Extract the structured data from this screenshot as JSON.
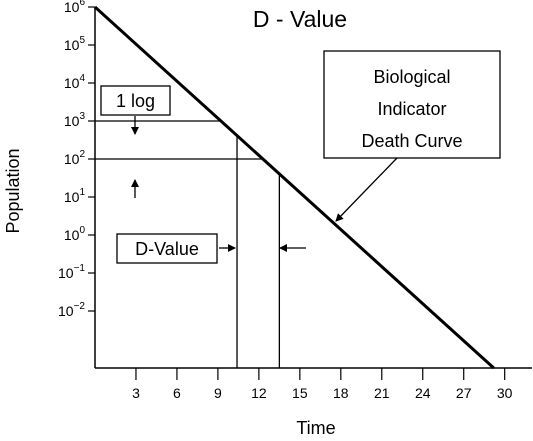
{
  "chart_data": {
    "type": "line",
    "title": "D - Value",
    "xlabel": "Time",
    "ylabel": "Population",
    "y_scale": "log",
    "xlim": [
      0,
      32
    ],
    "ylim": [
      -3.5,
      6
    ],
    "x_ticks": [
      3,
      6,
      9,
      12,
      15,
      18,
      21,
      24,
      27,
      30
    ],
    "y_ticks": [
      {
        "base": "10",
        "exp": "6"
      },
      {
        "base": "10",
        "exp": "5"
      },
      {
        "base": "10",
        "exp": "4"
      },
      {
        "base": "10",
        "exp": "3"
      },
      {
        "base": "10",
        "exp": "2"
      },
      {
        "base": "10",
        "exp": "1"
      },
      {
        "base": "10",
        "exp": "0"
      },
      {
        "base": "10",
        "exp": "−1"
      },
      {
        "base": "10",
        "exp": "−2"
      }
    ],
    "y_tick_values": [
      6,
      5,
      4,
      3,
      2,
      1,
      0,
      -1,
      -2
    ],
    "series": [
      {
        "points": [
          [
            0,
            6
          ],
          [
            29.2,
            -3.5
          ]
        ]
      }
    ],
    "reference_lines": {
      "log_levels": [
        3,
        2
      ],
      "times": [
        10.4,
        13.5
      ]
    },
    "annotations": {
      "death_curve": "Biological\nIndicator\nDeath Curve",
      "one_log": "1 log",
      "d_value": "D-Value"
    }
  }
}
